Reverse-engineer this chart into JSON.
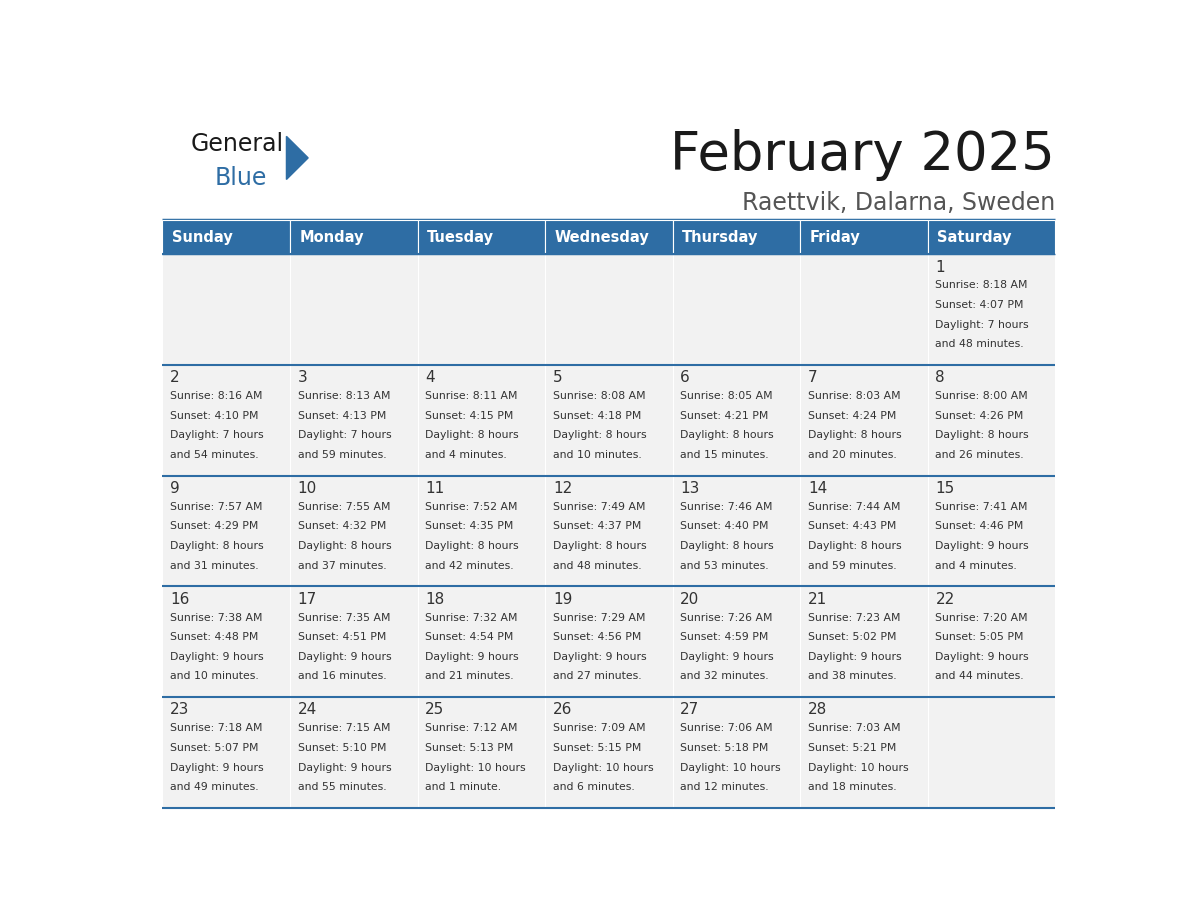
{
  "title": "February 2025",
  "subtitle": "Raettvik, Dalarna, Sweden",
  "header_bg": "#2E6DA4",
  "header_text_color": "#FFFFFF",
  "cell_bg": "#F2F2F2",
  "separator_color": "#2E6DA4",
  "text_color": "#333333",
  "day_names": [
    "Sunday",
    "Monday",
    "Tuesday",
    "Wednesday",
    "Thursday",
    "Friday",
    "Saturday"
  ],
  "logo_general_color": "#1a1a1a",
  "logo_blue_color": "#2E6DA4",
  "weeks": [
    [
      {
        "day": null
      },
      {
        "day": null
      },
      {
        "day": null
      },
      {
        "day": null
      },
      {
        "day": null
      },
      {
        "day": null
      },
      {
        "day": 1,
        "sunrise": "8:18 AM",
        "sunset": "4:07 PM",
        "daylight": "7 hours",
        "daylight2": "and 48 minutes."
      }
    ],
    [
      {
        "day": 2,
        "sunrise": "8:16 AM",
        "sunset": "4:10 PM",
        "daylight": "7 hours",
        "daylight2": "and 54 minutes."
      },
      {
        "day": 3,
        "sunrise": "8:13 AM",
        "sunset": "4:13 PM",
        "daylight": "7 hours",
        "daylight2": "and 59 minutes."
      },
      {
        "day": 4,
        "sunrise": "8:11 AM",
        "sunset": "4:15 PM",
        "daylight": "8 hours",
        "daylight2": "and 4 minutes."
      },
      {
        "day": 5,
        "sunrise": "8:08 AM",
        "sunset": "4:18 PM",
        "daylight": "8 hours",
        "daylight2": "and 10 minutes."
      },
      {
        "day": 6,
        "sunrise": "8:05 AM",
        "sunset": "4:21 PM",
        "daylight": "8 hours",
        "daylight2": "and 15 minutes."
      },
      {
        "day": 7,
        "sunrise": "8:03 AM",
        "sunset": "4:24 PM",
        "daylight": "8 hours",
        "daylight2": "and 20 minutes."
      },
      {
        "day": 8,
        "sunrise": "8:00 AM",
        "sunset": "4:26 PM",
        "daylight": "8 hours",
        "daylight2": "and 26 minutes."
      }
    ],
    [
      {
        "day": 9,
        "sunrise": "7:57 AM",
        "sunset": "4:29 PM",
        "daylight": "8 hours",
        "daylight2": "and 31 minutes."
      },
      {
        "day": 10,
        "sunrise": "7:55 AM",
        "sunset": "4:32 PM",
        "daylight": "8 hours",
        "daylight2": "and 37 minutes."
      },
      {
        "day": 11,
        "sunrise": "7:52 AM",
        "sunset": "4:35 PM",
        "daylight": "8 hours",
        "daylight2": "and 42 minutes."
      },
      {
        "day": 12,
        "sunrise": "7:49 AM",
        "sunset": "4:37 PM",
        "daylight": "8 hours",
        "daylight2": "and 48 minutes."
      },
      {
        "day": 13,
        "sunrise": "7:46 AM",
        "sunset": "4:40 PM",
        "daylight": "8 hours",
        "daylight2": "and 53 minutes."
      },
      {
        "day": 14,
        "sunrise": "7:44 AM",
        "sunset": "4:43 PM",
        "daylight": "8 hours",
        "daylight2": "and 59 minutes."
      },
      {
        "day": 15,
        "sunrise": "7:41 AM",
        "sunset": "4:46 PM",
        "daylight": "9 hours",
        "daylight2": "and 4 minutes."
      }
    ],
    [
      {
        "day": 16,
        "sunrise": "7:38 AM",
        "sunset": "4:48 PM",
        "daylight": "9 hours",
        "daylight2": "and 10 minutes."
      },
      {
        "day": 17,
        "sunrise": "7:35 AM",
        "sunset": "4:51 PM",
        "daylight": "9 hours",
        "daylight2": "and 16 minutes."
      },
      {
        "day": 18,
        "sunrise": "7:32 AM",
        "sunset": "4:54 PM",
        "daylight": "9 hours",
        "daylight2": "and 21 minutes."
      },
      {
        "day": 19,
        "sunrise": "7:29 AM",
        "sunset": "4:56 PM",
        "daylight": "9 hours",
        "daylight2": "and 27 minutes."
      },
      {
        "day": 20,
        "sunrise": "7:26 AM",
        "sunset": "4:59 PM",
        "daylight": "9 hours",
        "daylight2": "and 32 minutes."
      },
      {
        "day": 21,
        "sunrise": "7:23 AM",
        "sunset": "5:02 PM",
        "daylight": "9 hours",
        "daylight2": "and 38 minutes."
      },
      {
        "day": 22,
        "sunrise": "7:20 AM",
        "sunset": "5:05 PM",
        "daylight": "9 hours",
        "daylight2": "and 44 minutes."
      }
    ],
    [
      {
        "day": 23,
        "sunrise": "7:18 AM",
        "sunset": "5:07 PM",
        "daylight": "9 hours",
        "daylight2": "and 49 minutes."
      },
      {
        "day": 24,
        "sunrise": "7:15 AM",
        "sunset": "5:10 PM",
        "daylight": "9 hours",
        "daylight2": "and 55 minutes."
      },
      {
        "day": 25,
        "sunrise": "7:12 AM",
        "sunset": "5:13 PM",
        "daylight": "10 hours",
        "daylight2": "and 1 minute."
      },
      {
        "day": 26,
        "sunrise": "7:09 AM",
        "sunset": "5:15 PM",
        "daylight": "10 hours",
        "daylight2": "and 6 minutes."
      },
      {
        "day": 27,
        "sunrise": "7:06 AM",
        "sunset": "5:18 PM",
        "daylight": "10 hours",
        "daylight2": "and 12 minutes."
      },
      {
        "day": 28,
        "sunrise": "7:03 AM",
        "sunset": "5:21 PM",
        "daylight": "10 hours",
        "daylight2": "and 18 minutes."
      },
      {
        "day": null
      }
    ]
  ]
}
